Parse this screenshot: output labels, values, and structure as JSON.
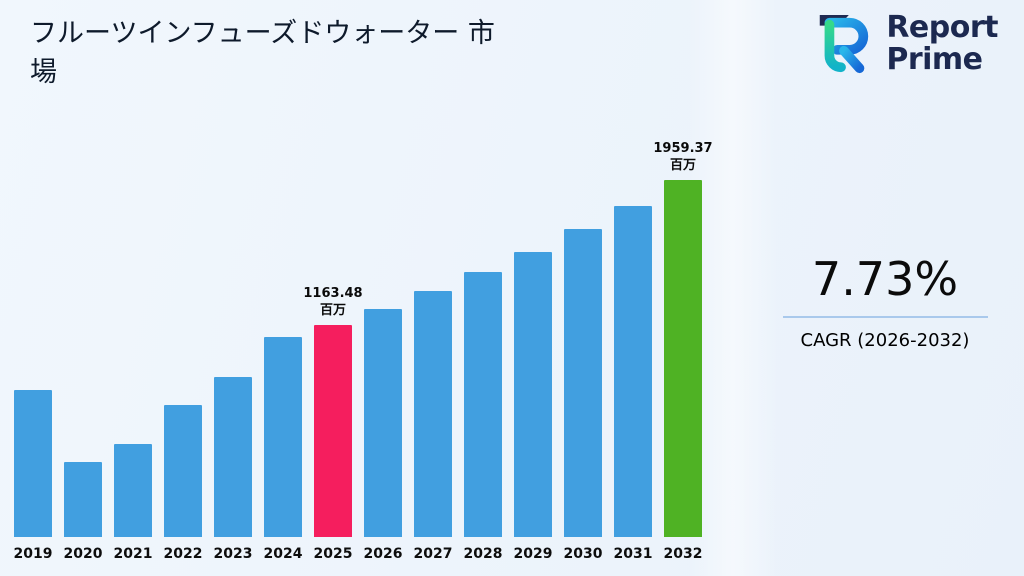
{
  "page": {
    "background": "#edf4fb"
  },
  "header": {
    "title": "フルーツインフューズドウォーター 市場"
  },
  "logo": {
    "line1": "Report",
    "line2": "Prime"
  },
  "stats": {
    "value": "7.73%",
    "label": "CAGR (2026-2032)"
  },
  "chart_data": {
    "type": "bar",
    "title": "フルーツインフューズドウォーター 市場",
    "unit_label": "百万",
    "categories": [
      "2019",
      "2020",
      "2021",
      "2022",
      "2023",
      "2024",
      "2025",
      "2026",
      "2027",
      "2028",
      "2029",
      "2030",
      "2031",
      "2032"
    ],
    "values": [
      805,
      410,
      513,
      723,
      876,
      1097,
      1163.48,
      1253.41,
      1350.3,
      1454.68,
      1567.13,
      1688.27,
      1818.78,
      1959.37
    ],
    "ylim": [
      0,
      1959.37
    ],
    "grid": false,
    "legend": false,
    "colors": {
      "default": "#419fe0",
      "2025": "#f51e5e",
      "2032": "#4fb224"
    },
    "annotations": [
      {
        "category": "2025",
        "value": "1163.48",
        "unit": "百万"
      },
      {
        "category": "2032",
        "value": "1959.37",
        "unit": "百万"
      }
    ]
  }
}
